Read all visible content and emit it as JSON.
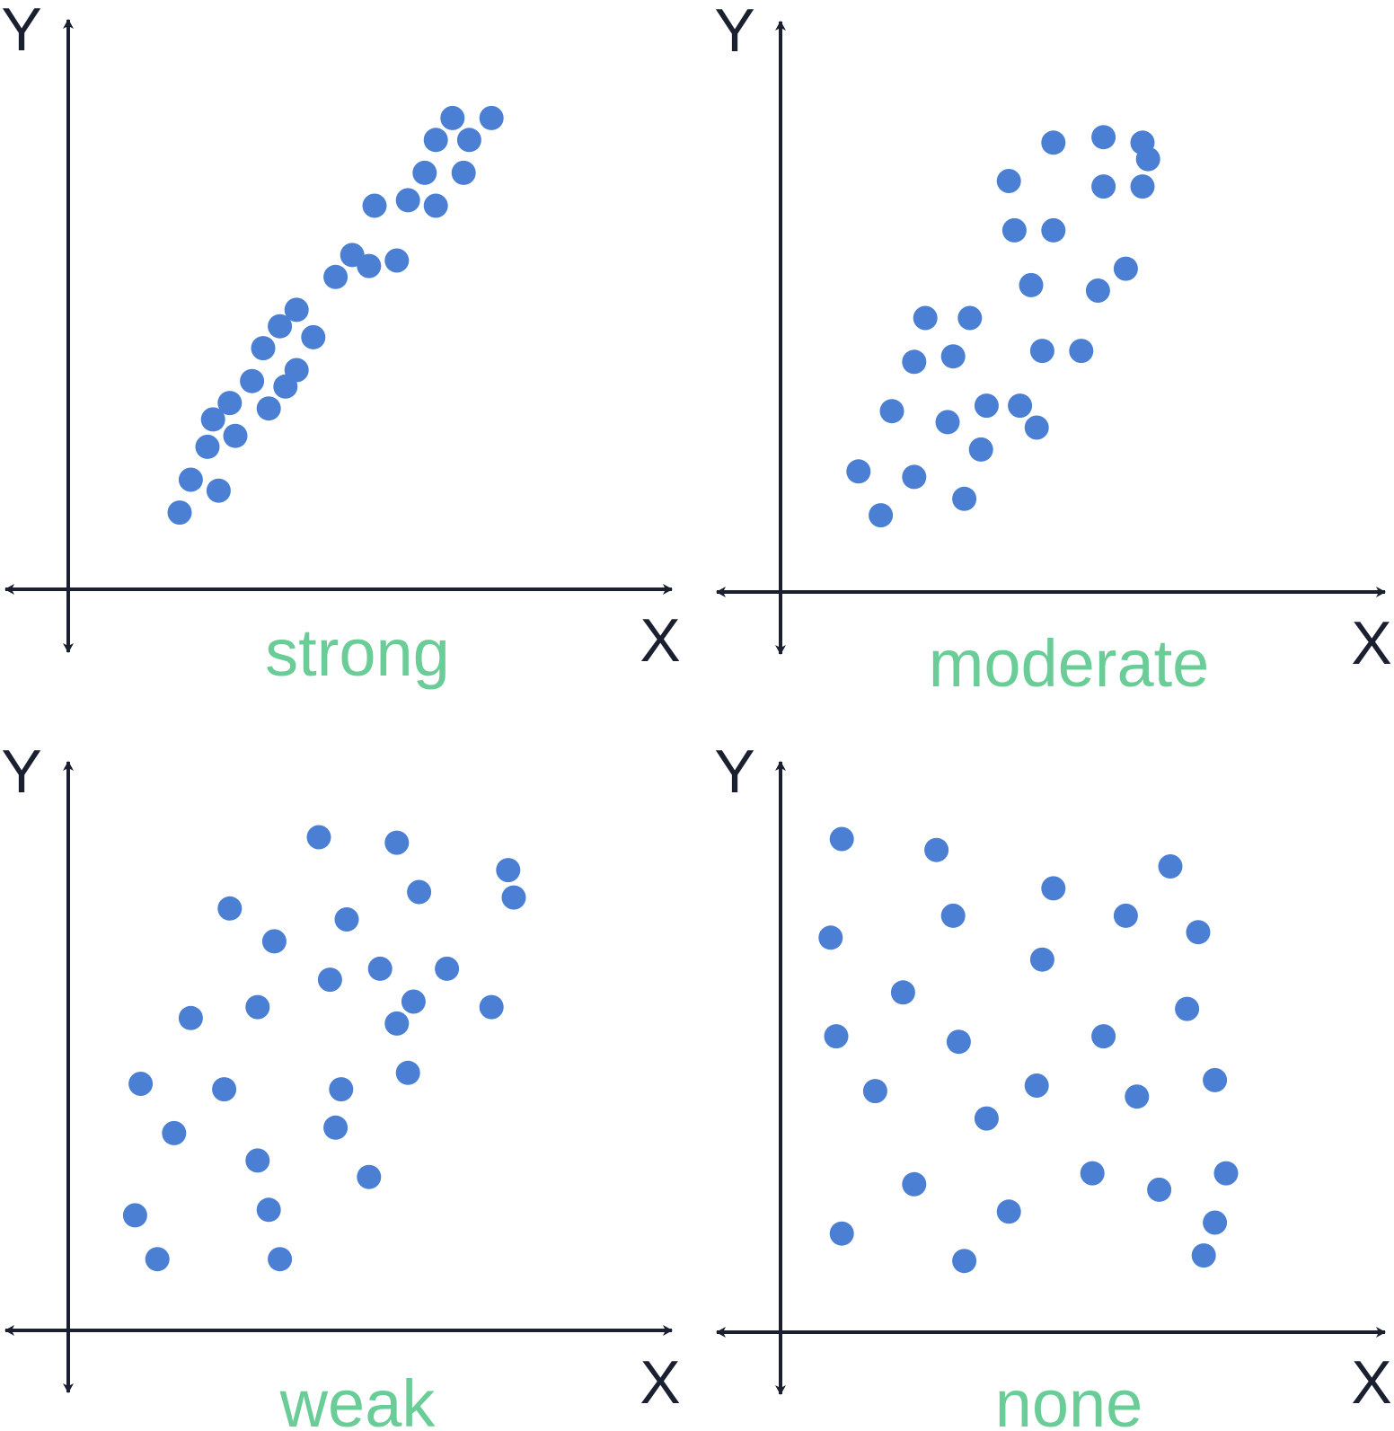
{
  "colors": {
    "axis": "#1b2030",
    "point": "#4a7fd4",
    "label": "#6acc96"
  },
  "chart_data": [
    {
      "type": "scatter",
      "title": "",
      "xlabel": "X",
      "ylabel": "Y",
      "caption": "strong",
      "xlim": [
        0,
        10
      ],
      "ylim": [
        0,
        10
      ],
      "grid": false,
      "points": [
        [
          2.0,
          1.4
        ],
        [
          2.7,
          1.8
        ],
        [
          2.2,
          2.0
        ],
        [
          2.5,
          2.6
        ],
        [
          3.0,
          2.8
        ],
        [
          2.6,
          3.1
        ],
        [
          2.9,
          3.4
        ],
        [
          3.6,
          3.3
        ],
        [
          3.3,
          3.8
        ],
        [
          3.9,
          3.7
        ],
        [
          3.5,
          4.4
        ],
        [
          4.1,
          4.0
        ],
        [
          3.8,
          4.8
        ],
        [
          4.4,
          4.6
        ],
        [
          4.1,
          5.1
        ],
        [
          4.8,
          5.7
        ],
        [
          5.4,
          5.9
        ],
        [
          5.1,
          6.1
        ],
        [
          5.9,
          6.0
        ],
        [
          5.5,
          7.0
        ],
        [
          6.1,
          7.1
        ],
        [
          6.6,
          7.0
        ],
        [
          6.4,
          7.6
        ],
        [
          7.1,
          7.6
        ],
        [
          6.6,
          8.2
        ],
        [
          7.2,
          8.2
        ],
        [
          6.9,
          8.6
        ],
        [
          7.6,
          8.6
        ]
      ]
    },
    {
      "type": "scatter",
      "title": "",
      "xlabel": "X",
      "ylabel": "Y",
      "caption": "moderate",
      "xlim": [
        0,
        10
      ],
      "ylim": [
        0,
        10
      ],
      "grid": false,
      "points": [
        [
          1.8,
          1.4
        ],
        [
          1.4,
          2.2
        ],
        [
          2.4,
          2.1
        ],
        [
          3.3,
          1.7
        ],
        [
          3.6,
          2.6
        ],
        [
          2.0,
          3.3
        ],
        [
          3.0,
          3.1
        ],
        [
          3.7,
          3.4
        ],
        [
          4.3,
          3.4
        ],
        [
          4.6,
          3.0
        ],
        [
          2.4,
          4.2
        ],
        [
          3.1,
          4.3
        ],
        [
          2.6,
          5.0
        ],
        [
          3.4,
          5.0
        ],
        [
          4.7,
          4.4
        ],
        [
          5.4,
          4.4
        ],
        [
          4.5,
          5.6
        ],
        [
          5.7,
          5.5
        ],
        [
          6.2,
          5.9
        ],
        [
          4.2,
          6.6
        ],
        [
          4.9,
          6.6
        ],
        [
          4.1,
          7.5
        ],
        [
          5.8,
          7.4
        ],
        [
          6.5,
          7.4
        ],
        [
          6.6,
          7.9
        ],
        [
          4.9,
          8.2
        ],
        [
          5.8,
          8.3
        ],
        [
          6.5,
          8.2
        ]
      ]
    },
    {
      "type": "scatter",
      "title": "",
      "xlabel": "X",
      "ylabel": "Y",
      "caption": "weak",
      "xlim": [
        0,
        10
      ],
      "ylim": [
        0,
        10
      ],
      "grid": false,
      "points": [
        [
          1.6,
          1.3
        ],
        [
          1.2,
          2.1
        ],
        [
          3.8,
          1.3
        ],
        [
          3.6,
          2.2
        ],
        [
          3.4,
          3.1
        ],
        [
          5.4,
          2.8
        ],
        [
          1.9,
          3.6
        ],
        [
          2.8,
          4.4
        ],
        [
          4.8,
          3.7
        ],
        [
          1.3,
          4.5
        ],
        [
          4.9,
          4.4
        ],
        [
          6.1,
          4.7
        ],
        [
          5.9,
          5.6
        ],
        [
          2.2,
          5.7
        ],
        [
          3.4,
          5.9
        ],
        [
          6.2,
          6.0
        ],
        [
          7.6,
          5.9
        ],
        [
          4.7,
          6.4
        ],
        [
          5.6,
          6.6
        ],
        [
          6.8,
          6.6
        ],
        [
          3.7,
          7.1
        ],
        [
          5.0,
          7.5
        ],
        [
          2.9,
          7.7
        ],
        [
          6.3,
          8.0
        ],
        [
          8.0,
          7.9
        ],
        [
          5.9,
          8.9
        ],
        [
          7.9,
          8.4
        ],
        [
          4.5,
          9.0
        ]
      ]
    },
    {
      "type": "scatter",
      "title": "",
      "xlabel": "X",
      "ylabel": "Y",
      "caption": "none",
      "xlim": [
        0,
        10
      ],
      "ylim": [
        0,
        10
      ],
      "grid": false,
      "points": [
        [
          1.1,
          9.0
        ],
        [
          2.8,
          8.8
        ],
        [
          7.0,
          8.5
        ],
        [
          4.9,
          8.1
        ],
        [
          3.1,
          7.6
        ],
        [
          6.2,
          7.6
        ],
        [
          0.9,
          7.2
        ],
        [
          7.5,
          7.3
        ],
        [
          4.7,
          6.8
        ],
        [
          2.2,
          6.2
        ],
        [
          7.3,
          5.9
        ],
        [
          1.0,
          5.4
        ],
        [
          3.2,
          5.3
        ],
        [
          5.8,
          5.4
        ],
        [
          1.7,
          4.4
        ],
        [
          4.6,
          4.5
        ],
        [
          6.4,
          4.3
        ],
        [
          7.8,
          4.6
        ],
        [
          3.7,
          3.9
        ],
        [
          2.4,
          2.7
        ],
        [
          5.6,
          2.9
        ],
        [
          6.8,
          2.6
        ],
        [
          8.0,
          2.9
        ],
        [
          4.1,
          2.2
        ],
        [
          1.1,
          1.8
        ],
        [
          3.3,
          1.3
        ],
        [
          7.6,
          1.4
        ],
        [
          7.8,
          2.0
        ]
      ]
    }
  ]
}
